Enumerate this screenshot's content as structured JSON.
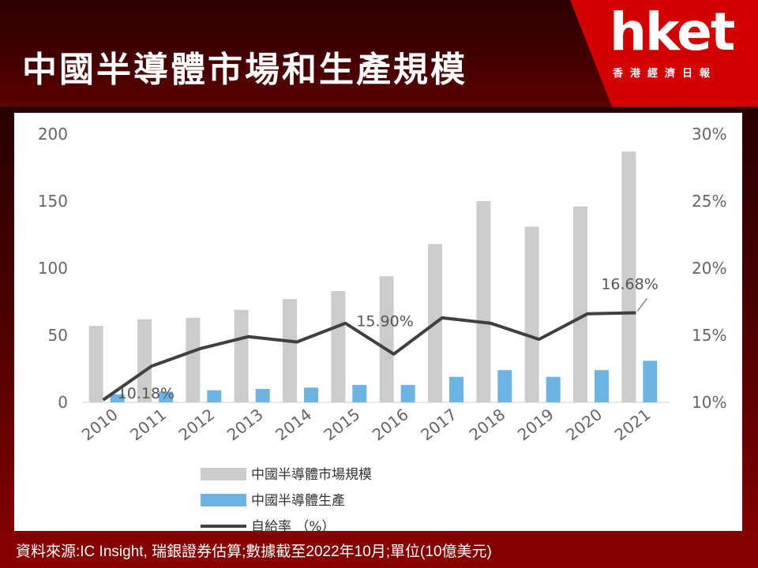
{
  "header": {
    "title": "中國半導體市場和生產規模",
    "logo_main": "hket",
    "logo_sub": "香港經濟日報"
  },
  "source": "資料來源:IC Insight, 瑞銀證券估算;數據截至2022年10月;單位(10億美元)",
  "colors": {
    "market": "#cccccc",
    "production": "#6cb4e2",
    "rate": "#404040",
    "header_red": "#d40000"
  },
  "chart_data": {
    "type": "bar",
    "categories": [
      "2010",
      "2011",
      "2012",
      "2013",
      "2014",
      "2015",
      "2016",
      "2017",
      "2018",
      "2019",
      "2020",
      "2021"
    ],
    "series": [
      {
        "name": "中國半導體市場規模",
        "type": "bar",
        "axis": "left",
        "values": [
          57,
          62,
          63,
          69,
          77,
          83,
          94,
          118,
          150,
          131,
          146,
          187
        ]
      },
      {
        "name": "中國半導體生產",
        "type": "bar",
        "axis": "left",
        "values": [
          6,
          8,
          9,
          10,
          11,
          13,
          13,
          19,
          24,
          19,
          24,
          31
        ]
      },
      {
        "name": "自給率 (%)",
        "type": "line",
        "axis": "right",
        "values": [
          10.18,
          12.7,
          14.0,
          14.9,
          14.5,
          15.9,
          13.6,
          16.3,
          15.9,
          14.7,
          16.6,
          16.68
        ]
      }
    ],
    "left_axis": {
      "min": 0,
      "max": 200,
      "ticks": [
        "0",
        "50",
        "100",
        "150",
        "200"
      ]
    },
    "right_axis": {
      "min": 10,
      "max": 30,
      "ticks": [
        "10%",
        "15%",
        "20%",
        "25%",
        "30%"
      ]
    },
    "annotations": [
      {
        "text": "10.18%",
        "index": 0
      },
      {
        "text": "15.90%",
        "index": 5
      },
      {
        "text": "16.68%",
        "index": 11
      }
    ],
    "legend": [
      {
        "label": "中國半導體市場規模"
      },
      {
        "label": "中國半導體生產"
      },
      {
        "label": "自給率 （%）"
      }
    ],
    "legend_position": "bottom",
    "grid": false
  }
}
